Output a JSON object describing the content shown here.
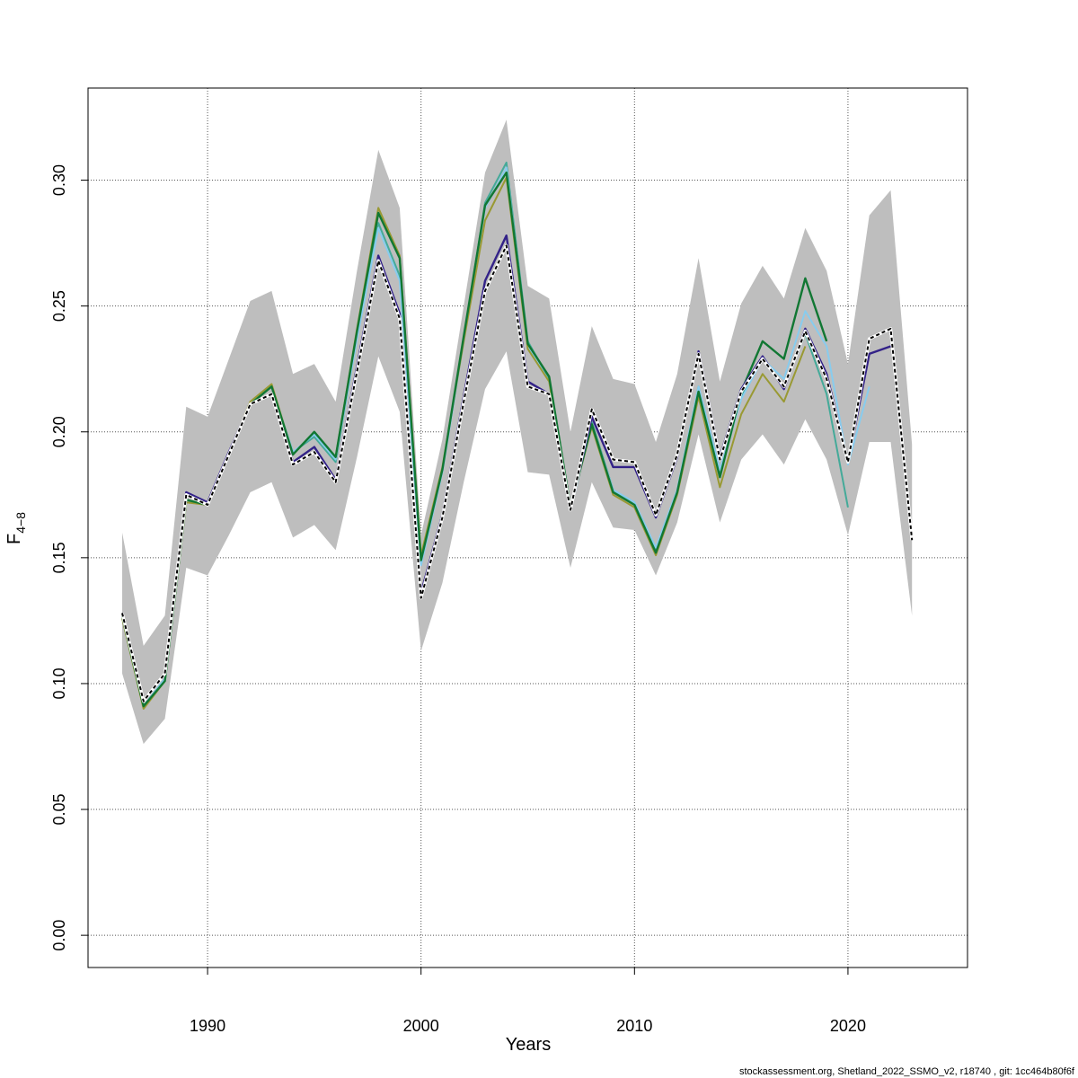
{
  "chart_data": {
    "type": "line",
    "xlabel": "Years",
    "ylabel_main": "F",
    "ylabel_sub": "4−8",
    "xlim": [
      1984.4,
      2025.6
    ],
    "ylim": [
      -0.0128,
      0.3366
    ],
    "x_ticks": [
      1990,
      2000,
      2010,
      2020
    ],
    "y_ticks": [
      0.0,
      0.05,
      0.1,
      0.15,
      0.2,
      0.25,
      0.3
    ],
    "y_tick_labels": [
      "0.00",
      "0.05",
      "0.10",
      "0.15",
      "0.20",
      "0.25",
      "0.30"
    ],
    "grid": true,
    "band": {
      "color": "#bebebe",
      "x": [
        1986,
        1987,
        1988,
        1989,
        1990,
        1991,
        1992,
        1993,
        1994,
        1995,
        1996,
        1997,
        1998,
        1999,
        2000,
        2001,
        2002,
        2003,
        2004,
        2005,
        2006,
        2007,
        2008,
        2009,
        2010,
        2011,
        2012,
        2013,
        2014,
        2015,
        2016,
        2017,
        2018,
        2019,
        2020,
        2021,
        2022,
        2023
      ],
      "upper": [
        0.16,
        0.115,
        0.127,
        0.21,
        0.206,
        0.229,
        0.252,
        0.256,
        0.223,
        0.227,
        0.212,
        0.264,
        0.312,
        0.289,
        0.159,
        0.197,
        0.25,
        0.303,
        0.324,
        0.258,
        0.253,
        0.2,
        0.242,
        0.221,
        0.219,
        0.196,
        0.223,
        0.269,
        0.22,
        0.251,
        0.266,
        0.253,
        0.281,
        0.264,
        0.227,
        0.286,
        0.296,
        0.195
      ],
      "lower": [
        0.104,
        0.076,
        0.086,
        0.146,
        0.143,
        0.159,
        0.176,
        0.18,
        0.158,
        0.163,
        0.153,
        0.19,
        0.23,
        0.208,
        0.113,
        0.14,
        0.18,
        0.217,
        0.232,
        0.184,
        0.183,
        0.146,
        0.18,
        0.162,
        0.161,
        0.143,
        0.164,
        0.199,
        0.164,
        0.189,
        0.199,
        0.187,
        0.205,
        0.189,
        0.159,
        0.196,
        0.196,
        0.127
      ]
    },
    "series": [
      {
        "color": "#00000000",
        "dashed": false,
        "width": 2,
        "x": [],
        "values": []
      },
      {
        "color": "#44aa99",
        "dashed": false,
        "width": 2,
        "x": [
          1986,
          1987,
          1988,
          1989,
          1990,
          1991,
          1992,
          1993,
          1994,
          1995,
          1996,
          1997,
          1998,
          1999,
          2000,
          2001,
          2002,
          2003,
          2004,
          2005,
          2006,
          2007,
          2008,
          2009,
          2010,
          2011,
          2012,
          2013,
          2014,
          2015,
          2016,
          2017,
          2018,
          2019,
          2020
        ],
        "values": [
          0.127,
          0.091,
          0.102,
          0.173,
          0.171,
          0.191,
          0.211,
          0.218,
          0.192,
          0.198,
          0.188,
          0.238,
          0.283,
          0.262,
          0.148,
          0.185,
          0.237,
          0.291,
          0.307,
          0.236,
          0.221,
          0.17,
          0.204,
          0.177,
          0.171,
          0.153,
          0.176,
          0.218,
          0.183,
          0.214,
          0.23,
          0.218,
          0.239,
          0.215,
          0.17
        ]
      },
      {
        "color": "#88ccee",
        "dashed": false,
        "width": 2,
        "x": [
          1986,
          1987,
          1988,
          1989,
          1990,
          1991,
          1992,
          1993,
          1994,
          1995,
          1996,
          1997,
          1998,
          1999,
          2000,
          2001,
          2002,
          2003,
          2004,
          2005,
          2006,
          2007,
          2008,
          2009,
          2010,
          2011,
          2012,
          2013,
          2014,
          2015,
          2016,
          2017,
          2018,
          2019,
          2020,
          2021
        ],
        "values": [
          0.127,
          0.091,
          0.102,
          0.173,
          0.171,
          0.191,
          0.211,
          0.218,
          0.192,
          0.199,
          0.189,
          0.237,
          0.281,
          0.26,
          0.147,
          0.184,
          0.236,
          0.289,
          0.305,
          0.234,
          0.22,
          0.169,
          0.203,
          0.177,
          0.172,
          0.154,
          0.177,
          0.218,
          0.185,
          0.213,
          0.229,
          0.221,
          0.248,
          0.234,
          0.187,
          0.218
        ]
      },
      {
        "color": "#999933",
        "dashed": false,
        "width": 2,
        "x": [
          1986,
          1987,
          1988,
          1989,
          1990,
          1991,
          1992,
          1993,
          1994,
          1995,
          1996,
          1997,
          1998,
          1999,
          2000,
          2001,
          2002,
          2003,
          2004,
          2005,
          2006,
          2007,
          2008,
          2009,
          2010,
          2011,
          2012,
          2013,
          2014,
          2015,
          2016,
          2017,
          2018
        ],
        "values": [
          0.126,
          0.09,
          0.101,
          0.172,
          0.171,
          0.191,
          0.212,
          0.219,
          0.191,
          0.2,
          0.19,
          0.241,
          0.289,
          0.27,
          0.151,
          0.186,
          0.236,
          0.284,
          0.301,
          0.233,
          0.22,
          0.17,
          0.202,
          0.175,
          0.17,
          0.151,
          0.175,
          0.214,
          0.178,
          0.207,
          0.223,
          0.212,
          0.234
        ]
      },
      {
        "color": "#117733",
        "dashed": false,
        "width": 2.4,
        "x": [
          1986,
          1987,
          1988,
          1989,
          1990,
          1991,
          1992,
          1993,
          1994,
          1995,
          1996,
          1997,
          1998,
          1999,
          2000,
          2001,
          2002,
          2003,
          2004,
          2005,
          2006,
          2007,
          2008,
          2009,
          2010,
          2011,
          2012,
          2013,
          2014,
          2015,
          2016,
          2017,
          2018,
          2019
        ],
        "values": [
          0.127,
          0.091,
          0.101,
          0.173,
          0.171,
          0.191,
          0.211,
          0.218,
          0.191,
          0.2,
          0.19,
          0.24,
          0.287,
          0.269,
          0.149,
          0.185,
          0.238,
          0.29,
          0.303,
          0.235,
          0.222,
          0.17,
          0.203,
          0.176,
          0.171,
          0.152,
          0.176,
          0.216,
          0.182,
          0.216,
          0.236,
          0.229,
          0.261,
          0.236
        ]
      },
      {
        "color": "#332288",
        "dashed": false,
        "width": 2.4,
        "x": [
          1986,
          1987,
          1988,
          1989,
          1990,
          1991,
          1992,
          1993,
          1994,
          1995,
          1996,
          1997,
          1998,
          1999,
          2000,
          2001,
          2002,
          2003,
          2004,
          2005,
          2006,
          2007,
          2008,
          2009,
          2010,
          2011,
          2012,
          2013,
          2014,
          2015,
          2016,
          2017,
          2018,
          2019,
          2020,
          2021,
          2022
        ],
        "values": [
          0.128,
          0.093,
          0.104,
          0.176,
          0.172,
          0.192,
          0.211,
          0.215,
          0.188,
          0.194,
          0.181,
          0.226,
          0.27,
          0.247,
          0.136,
          0.167,
          0.214,
          0.26,
          0.278,
          0.22,
          0.215,
          0.169,
          0.206,
          0.186,
          0.186,
          0.166,
          0.19,
          0.232,
          0.19,
          0.217,
          0.23,
          0.217,
          0.241,
          0.223,
          0.188,
          0.231,
          0.234
        ]
      },
      {
        "color": "#000000",
        "dashed": true,
        "width": 2,
        "x": [
          1986,
          1987,
          1988,
          1989,
          1990,
          1991,
          1992,
          1993,
          1994,
          1995,
          1996,
          1997,
          1998,
          1999,
          2000,
          2001,
          2002,
          2003,
          2004,
          2005,
          2006,
          2007,
          2008,
          2009,
          2010,
          2011,
          2012,
          2013,
          2014,
          2015,
          2016,
          2017,
          2018,
          2019,
          2020,
          2021,
          2022,
          2023
        ],
        "values": [
          0.128,
          0.093,
          0.104,
          0.175,
          0.171,
          0.191,
          0.211,
          0.215,
          0.187,
          0.192,
          0.18,
          0.224,
          0.268,
          0.245,
          0.134,
          0.166,
          0.212,
          0.256,
          0.274,
          0.218,
          0.215,
          0.169,
          0.209,
          0.189,
          0.188,
          0.167,
          0.191,
          0.231,
          0.189,
          0.216,
          0.229,
          0.218,
          0.24,
          0.221,
          0.188,
          0.237,
          0.241,
          0.157
        ]
      }
    ]
  },
  "footer": {
    "text": "stockassessment.org, Shetland_2022_SSMO_v2, r18740 , git: 1cc464b80f6f"
  }
}
